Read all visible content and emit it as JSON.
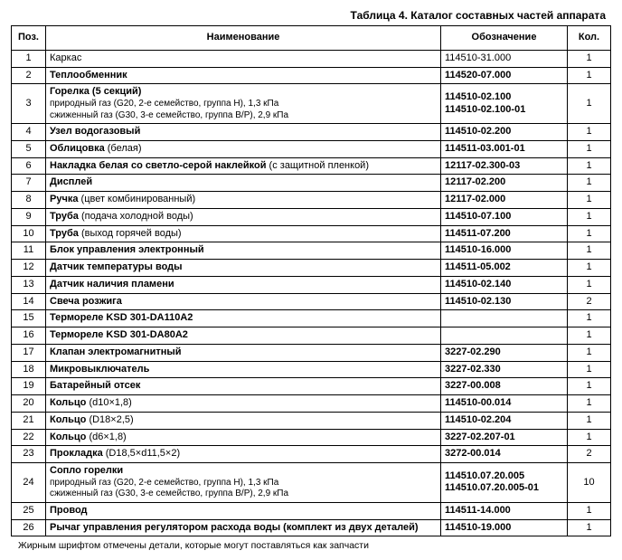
{
  "title": "Таблица 4. Каталог составных частей аппарата",
  "headers": {
    "pos": "Поз.",
    "name": "Наименование",
    "code": "Обозначение",
    "qty": "Кол."
  },
  "footnote": "Жирным шрифтом отмечены детали, которые могут поставляться как запчасти",
  "rows": [
    {
      "pos": "1",
      "name": "Каркас",
      "code": "114510-31.000",
      "qty": "1"
    },
    {
      "pos": "2",
      "name_bold": "Теплообменник",
      "code_bold": "114520-07.000",
      "qty": "1"
    },
    {
      "pos": "3",
      "name_bold": "Горелка (5 секций)",
      "name_sub1": "природный газ (G20, 2-е семейство, группа H), 1,3 кПа",
      "name_sub2": "сжиженный газ (G30, 3-е семейство, группа B/P), 2,9 кПа",
      "code_bold1": "114510-02.100",
      "code_bold2": "114510-02.100-01",
      "qty": "1"
    },
    {
      "pos": "4",
      "name_bold": "Узел водогазовый",
      "code_bold": "114510-02.200",
      "qty": "1"
    },
    {
      "pos": "5",
      "name_bold": "Облицовка",
      "name_tail": " (белая)",
      "code_bold": "114511-03.001-01",
      "qty": "1"
    },
    {
      "pos": "6",
      "name_bold": "Накладка белая со светло-серой наклейкой",
      "name_tail": " (с защитной пленкой)",
      "code_bold": "12117-02.300-03",
      "qty": "1"
    },
    {
      "pos": "7",
      "name_bold": "Дисплей",
      "code_bold": "12117-02.200",
      "qty": "1"
    },
    {
      "pos": "8",
      "name_bold": "Ручка",
      "name_tail": " (цвет комбинированный)",
      "code_bold": "12117-02.000",
      "qty": "1"
    },
    {
      "pos": "9",
      "name_bold": "Труба",
      "name_tail": " (подача холодной воды)",
      "code_bold": "114510-07.100",
      "qty": "1"
    },
    {
      "pos": "10",
      "name_bold": "Труба",
      "name_tail": " (выход горячей воды)",
      "code_bold": "114511-07.200",
      "qty": "1"
    },
    {
      "pos": "11",
      "name_bold": "Блок управления электронный",
      "code_bold": "114510-16.000",
      "qty": "1"
    },
    {
      "pos": "12",
      "name_bold": "Датчик температуры воды",
      "code_bold": "114511-05.002",
      "qty": "1"
    },
    {
      "pos": "13",
      "name_bold": "Датчик наличия пламени",
      "code_bold": "114510-02.140",
      "qty": "1"
    },
    {
      "pos": "14",
      "name_bold": "Свеча розжига",
      "code_bold": "114510-02.130",
      "qty": "2"
    },
    {
      "pos": "15",
      "name_bold": "Термореле KSD 301-DA110A2",
      "code": "",
      "qty": "1"
    },
    {
      "pos": "16",
      "name_bold": "Термореле KSD 301-DA80A2",
      "code": "",
      "qty": "1"
    },
    {
      "pos": "17",
      "name_bold": "Клапан электромагнитный",
      "code_bold": "3227-02.290",
      "qty": "1"
    },
    {
      "pos": "18",
      "name_bold": "Микровыключатель",
      "code_bold": "3227-02.330",
      "qty": "1"
    },
    {
      "pos": "19",
      "name_bold": "Батарейный отсек",
      "code_bold": "3227-00.008",
      "qty": "1"
    },
    {
      "pos": "20",
      "name_bold": "Кольцо",
      "name_tail": " (d10×1,8)",
      "code_bold": "114510-00.014",
      "qty": "1"
    },
    {
      "pos": "21",
      "name_bold": "Кольцо",
      "name_tail": " (D18×2,5)",
      "code_bold": "114510-02.204",
      "qty": "1"
    },
    {
      "pos": "22",
      "name_bold": "Кольцо",
      "name_tail": " (d6×1,8)",
      "code_bold": "3227-02.207-01",
      "qty": "1"
    },
    {
      "pos": "23",
      "name_bold": "Прокладка",
      "name_tail": " (D18,5×d11,5×2)",
      "code_bold": "3272-00.014",
      "qty": "2"
    },
    {
      "pos": "24",
      "name_bold": "Сопло горелки",
      "name_sub1": "природный газ (G20, 2-е семейство, группа H), 1,3 кПа",
      "name_sub2": "сжиженный газ (G30, 3-е семейство, группа B/P), 2,9 кПа",
      "code_bold1": "114510.07.20.005",
      "code_bold2": "114510.07.20.005-01",
      "qty": "10"
    },
    {
      "pos": "25",
      "name_bold": "Провод",
      "code_bold": "114511-14.000",
      "qty": "1"
    },
    {
      "pos": "26",
      "name_bold": "Рычаг управления регулятором расхода воды (комплект из двух деталей)",
      "code_bold": "114510-19.000",
      "qty": "1"
    }
  ]
}
